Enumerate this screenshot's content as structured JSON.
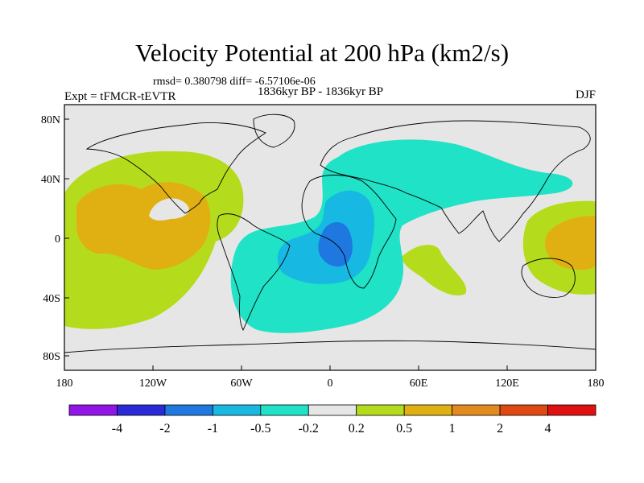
{
  "header": {
    "title": "Velocity Potential at 200 hPa (km2/s)",
    "stats": "rmsd= 0.380798 diff= -6.57106e-06",
    "experiment": "Expt = tFMCR-tEVTR",
    "period": "1836kyr BP - 1836kyr BP",
    "season": "DJF"
  },
  "map": {
    "lat_ticks": [
      "80N",
      "40N",
      "0",
      "40S",
      "80S"
    ],
    "lon_ticks": [
      "180",
      "120W",
      "60W",
      "0",
      "60E",
      "120E",
      "180"
    ]
  },
  "colorbar": {
    "labels": [
      "-4",
      "-2",
      "-1",
      "-0.5",
      "-0.2",
      "0.2",
      "0.5",
      "1",
      "2",
      "4"
    ],
    "colors": [
      "#9314e6",
      "#2a2ad8",
      "#1e78e0",
      "#17b9e3",
      "#1fe2c6",
      "#e6e6e6",
      "#b4dc1c",
      "#e0b012",
      "#e38a1e",
      "#e04812",
      "#e01010"
    ]
  }
}
